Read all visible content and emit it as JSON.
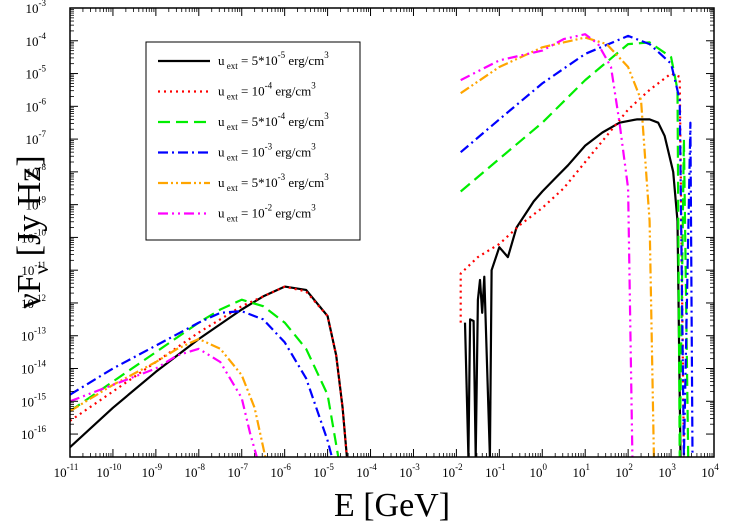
{
  "chart_data": {
    "type": "line",
    "xscale": "log",
    "yscale": "log",
    "xlim_exp": [
      -11,
      4
    ],
    "ylim_exp": [
      -16.7,
      -3
    ],
    "x_tick_exponents": [
      -11,
      -10,
      -9,
      -8,
      -7,
      -6,
      -5,
      -4,
      -3,
      -2,
      -1,
      0,
      1,
      2,
      3,
      4
    ],
    "y_tick_exponents": [
      -16,
      -15,
      -14,
      -13,
      -12,
      -11,
      -10,
      -9,
      -8,
      -7,
      -6,
      -5,
      -4,
      -3
    ],
    "tick_base": "10",
    "xlabel": "E [GeV]",
    "ylabel": {
      "main_left": "ν",
      "main_right": "F",
      "sub": "ν",
      "unit": " [Jy Hz]"
    },
    "legend": {
      "position": "top-left",
      "entries": [
        {
          "prefix": "u",
          "sub": "ext",
          "value": " = 5*10",
          "sup": "-5",
          "unit": " erg/cm",
          "unit_sup": "3"
        },
        {
          "prefix": "u",
          "sub": "ext",
          "value": " = 10",
          "sup": "-4",
          "unit": " erg/cm",
          "unit_sup": "3"
        },
        {
          "prefix": "u",
          "sub": "ext",
          "value": " = 5*10",
          "sup": "-4",
          "unit": " erg/cm",
          "unit_sup": "3"
        },
        {
          "prefix": "u",
          "sub": "ext",
          "value": " = 10",
          "sup": "-3",
          "unit": " erg/cm",
          "unit_sup": "3"
        },
        {
          "prefix": "u",
          "sub": "ext",
          "value": " =  5*10",
          "sup": "-3",
          "unit": " erg/cm",
          "unit_sup": "3"
        },
        {
          "prefix": "u",
          "sub": "ext",
          "value": " = 10",
          "sup": "-2",
          "unit": " erg/cm",
          "unit_sup": "3"
        }
      ]
    },
    "series": [
      {
        "name": "u_ext = 5*10^-5 erg/cm^3",
        "color": "#000000",
        "dash": "",
        "low": [
          [
            -11,
            -16.4
          ],
          [
            -10,
            -15.2
          ],
          [
            -9,
            -14.1
          ],
          [
            -8,
            -13.1
          ],
          [
            -7,
            -12.2
          ],
          [
            -6.5,
            -11.8
          ],
          [
            -6,
            -11.5
          ],
          [
            -5.5,
            -11.6
          ],
          [
            -5,
            -12.4
          ],
          [
            -4.8,
            -13.6
          ],
          [
            -4.65,
            -15.2
          ],
          [
            -4.55,
            -16.7
          ]
        ],
        "high": [
          [
            -1.8,
            -12.6
          ],
          [
            -1.72,
            -16.7
          ],
          [
            -1.68,
            -12.5
          ],
          [
            -1.6,
            -12.55
          ],
          [
            -1.55,
            -16.7
          ],
          [
            -1.5,
            -11.9
          ],
          [
            -1.45,
            -11.3
          ],
          [
            -1.4,
            -12.3
          ],
          [
            -1.35,
            -11.2
          ],
          [
            -1.22,
            -16.7
          ],
          [
            -1.18,
            -11.0
          ],
          [
            -1.0,
            -10.3
          ],
          [
            -0.8,
            -10.6
          ],
          [
            -0.6,
            -9.7
          ],
          [
            -0.4,
            -9.3
          ],
          [
            -0.2,
            -8.9
          ],
          [
            0.0,
            -8.6
          ],
          [
            0.3,
            -8.2
          ],
          [
            0.6,
            -7.8
          ],
          [
            1.0,
            -7.2
          ],
          [
            1.4,
            -6.8
          ],
          [
            1.8,
            -6.5
          ],
          [
            2.2,
            -6.4
          ],
          [
            2.5,
            -6.4
          ],
          [
            2.7,
            -6.5
          ],
          [
            2.85,
            -6.9
          ],
          [
            3.05,
            -8.0
          ],
          [
            3.15,
            -9.5
          ],
          [
            3.22,
            -16.7
          ]
        ]
      },
      {
        "name": "u_ext = 10^-4 erg/cm^3",
        "color": "#ff0000",
        "dash": "2,4",
        "low": [
          [
            -11,
            -15.6
          ],
          [
            -10,
            -14.7
          ],
          [
            -9,
            -13.8
          ],
          [
            -8,
            -12.9
          ],
          [
            -7,
            -12.1
          ],
          [
            -6.5,
            -11.8
          ],
          [
            -6,
            -11.5
          ],
          [
            -5.5,
            -11.65
          ],
          [
            -5,
            -12.4
          ],
          [
            -4.8,
            -13.6
          ],
          [
            -4.65,
            -15.2
          ],
          [
            -4.55,
            -16.7
          ]
        ],
        "high": [
          [
            -1.9,
            -12.6
          ],
          [
            -1.9,
            -11.1
          ],
          [
            -1.5,
            -10.6
          ],
          [
            -1.0,
            -10.2
          ],
          [
            -0.5,
            -9.6
          ],
          [
            0.0,
            -9.1
          ],
          [
            0.5,
            -8.5
          ],
          [
            1.0,
            -7.7
          ],
          [
            1.5,
            -6.9
          ],
          [
            2.0,
            -6.1
          ],
          [
            2.5,
            -5.5
          ],
          [
            3.0,
            -5.0
          ],
          [
            3.2,
            -5.1
          ],
          [
            3.3,
            -16.7
          ]
        ]
      },
      {
        "name": "u_ext = 5*10^-4 erg/cm^3",
        "color": "#00ee00",
        "dash": "12,6",
        "low": [
          [
            -11,
            -15.3
          ],
          [
            -10,
            -14.4
          ],
          [
            -9,
            -13.5
          ],
          [
            -8,
            -12.6
          ],
          [
            -7.5,
            -12.2
          ],
          [
            -7,
            -11.9
          ],
          [
            -6.5,
            -12.1
          ],
          [
            -6,
            -12.6
          ],
          [
            -5.5,
            -13.4
          ],
          [
            -5,
            -14.8
          ],
          [
            -4.75,
            -16.7
          ]
        ],
        "high": [
          [
            -1.9,
            -8.6
          ],
          [
            -1.0,
            -7.6
          ],
          [
            0.0,
            -6.5
          ],
          [
            1.0,
            -5.2
          ],
          [
            2.0,
            -4.1
          ],
          [
            2.5,
            -4.05
          ],
          [
            3.0,
            -4.5
          ],
          [
            3.15,
            -5.5
          ],
          [
            3.2,
            -16.7
          ],
          [
            3.3,
            -7.0
          ],
          [
            3.4,
            -16.7
          ]
        ]
      },
      {
        "name": "u_ext = 10^-3 erg/cm^3",
        "color": "#0000ff",
        "dash": "10,4,2,4",
        "low": [
          [
            -11,
            -14.8
          ],
          [
            -10,
            -14.0
          ],
          [
            -9,
            -13.3
          ],
          [
            -8,
            -12.6
          ],
          [
            -7.5,
            -12.3
          ],
          [
            -7,
            -12.25
          ],
          [
            -6.5,
            -12.5
          ],
          [
            -6,
            -13.2
          ],
          [
            -5.5,
            -14.3
          ],
          [
            -5,
            -16.2
          ],
          [
            -4.9,
            -16.7
          ]
        ],
        "high": [
          [
            -1.9,
            -7.4
          ],
          [
            -1.0,
            -6.4
          ],
          [
            0.0,
            -5.3
          ],
          [
            1.0,
            -4.4
          ],
          [
            2.0,
            -3.85
          ],
          [
            2.5,
            -4.1
          ],
          [
            3.0,
            -4.7
          ],
          [
            3.2,
            -5.8
          ],
          [
            3.3,
            -16.7
          ],
          [
            3.45,
            -6.5
          ],
          [
            3.5,
            -16.7
          ]
        ]
      },
      {
        "name": "u_ext = 5*10^-3 erg/cm^3",
        "color": "#ffa500",
        "dash": "10,3,2,3,2,3",
        "low": [
          [
            -11,
            -15.3
          ],
          [
            -10,
            -14.5
          ],
          [
            -9,
            -13.8
          ],
          [
            -8.5,
            -13.4
          ],
          [
            -8,
            -13.1
          ],
          [
            -7.5,
            -13.4
          ],
          [
            -7,
            -14.2
          ],
          [
            -6.7,
            -15.2
          ],
          [
            -6.45,
            -16.7
          ]
        ],
        "high": [
          [
            -1.9,
            -5.6
          ],
          [
            -1.0,
            -4.8
          ],
          [
            0.0,
            -4.2
          ],
          [
            1.0,
            -3.9
          ],
          [
            1.5,
            -4.1
          ],
          [
            2.0,
            -4.8
          ],
          [
            2.3,
            -5.8
          ],
          [
            2.5,
            -9.5
          ],
          [
            2.6,
            -16.7
          ]
        ]
      },
      {
        "name": "u_ext = 10^-2 erg/cm^3",
        "color": "#ff00ff",
        "dash": "10,4,2,4,2,4",
        "low": [
          [
            -11,
            -15.0
          ],
          [
            -10,
            -14.5
          ],
          [
            -9,
            -14.0
          ],
          [
            -8.5,
            -13.6
          ],
          [
            -8,
            -13.4
          ],
          [
            -7.5,
            -13.8
          ],
          [
            -7,
            -14.9
          ],
          [
            -6.8,
            -16.0
          ],
          [
            -6.65,
            -16.7
          ]
        ],
        "high": [
          [
            -1.9,
            -5.2
          ],
          [
            -1.0,
            -4.6
          ],
          [
            0.0,
            -4.3
          ],
          [
            0.5,
            -3.95
          ],
          [
            1.0,
            -3.8
          ],
          [
            1.3,
            -4.1
          ],
          [
            1.6,
            -4.8
          ],
          [
            1.8,
            -6.5
          ],
          [
            2.0,
            -8.5
          ],
          [
            2.1,
            -16.7
          ]
        ]
      }
    ]
  }
}
